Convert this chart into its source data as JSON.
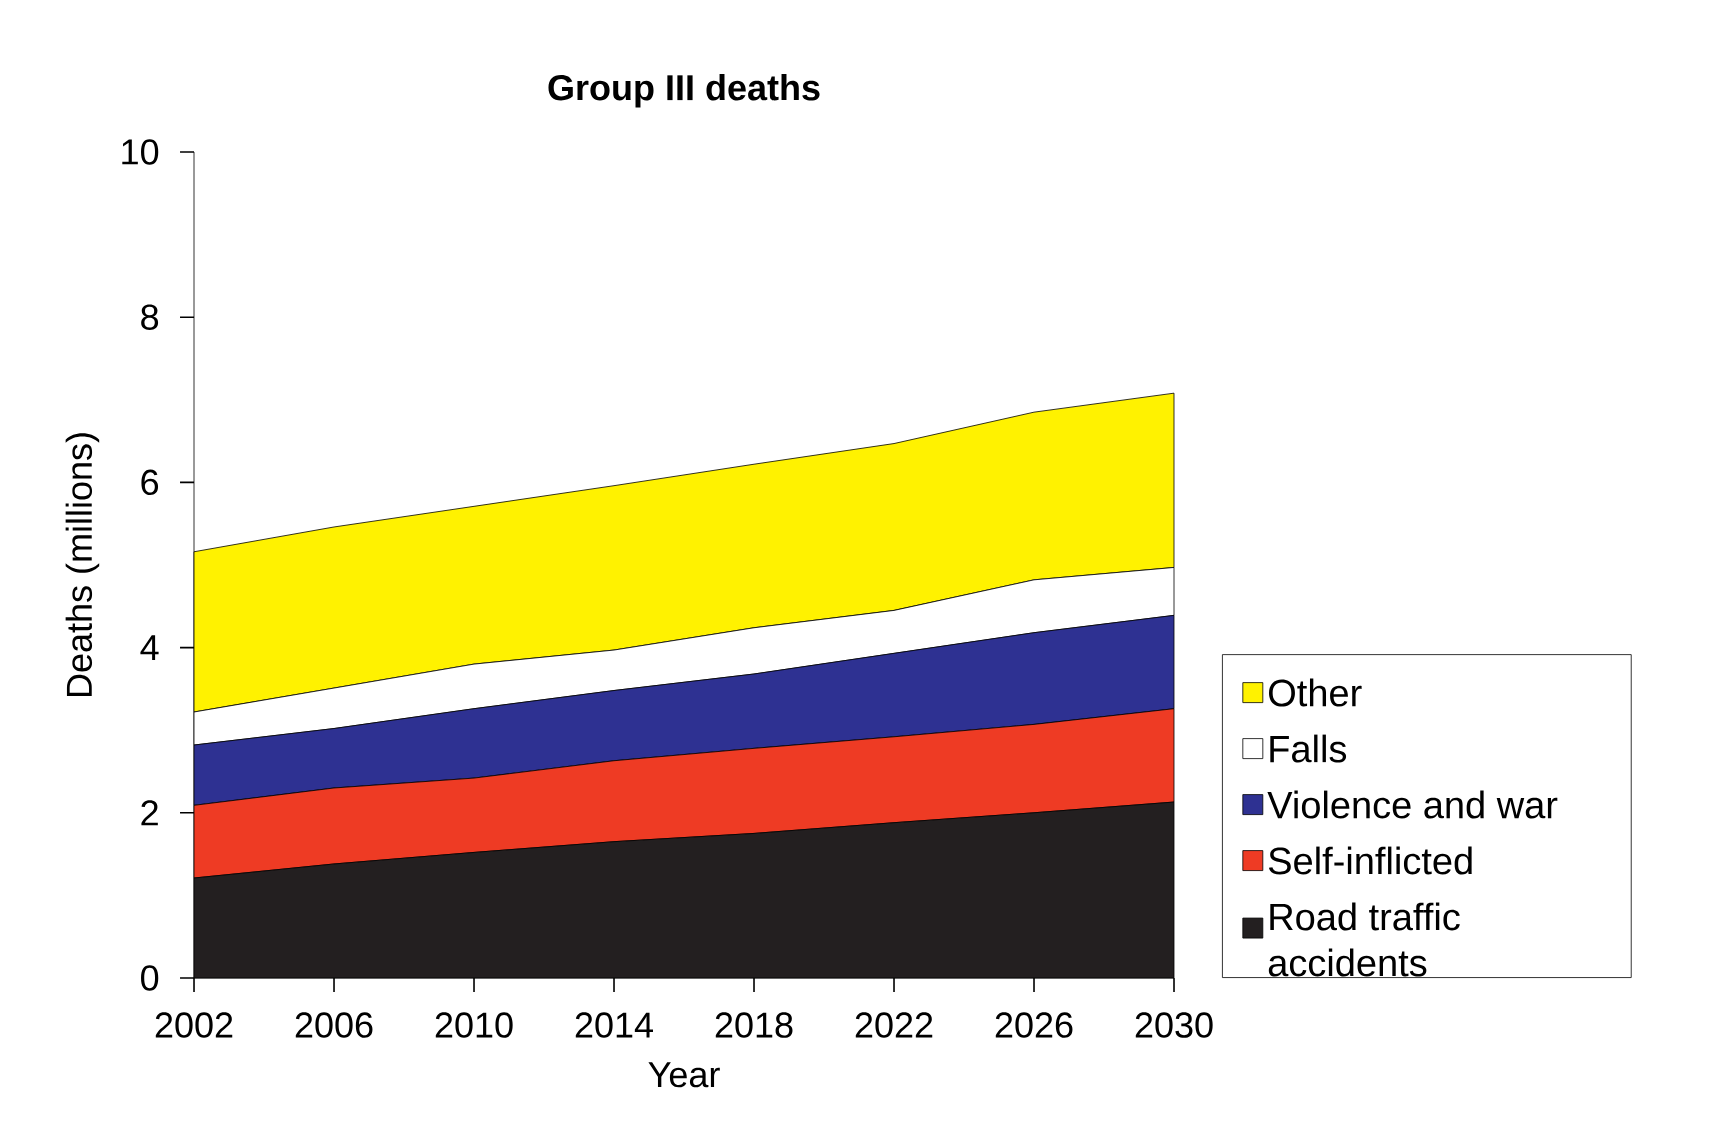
{
  "chart_data": {
    "type": "area",
    "stacked": true,
    "title": "Group III deaths",
    "xlabel": "Year",
    "ylabel": "Deaths (millions)",
    "x": [
      2002,
      2006,
      2010,
      2014,
      2018,
      2022,
      2026,
      2030
    ],
    "xlim": [
      2002,
      2030
    ],
    "xticks": [
      2002,
      2006,
      2010,
      2014,
      2018,
      2022,
      2026,
      2030
    ],
    "ylim": [
      0,
      10
    ],
    "yticks": [
      0,
      2,
      4,
      6,
      8,
      10
    ],
    "grid": false,
    "legend": "right",
    "series": [
      {
        "name": "Road traffic accidents",
        "color": "#231f20",
        "values": [
          1.21,
          1.38,
          1.52,
          1.65,
          1.75,
          1.88,
          2.0,
          2.13
        ]
      },
      {
        "name": "Self-inflicted",
        "color": "#ee3b24",
        "values": [
          0.88,
          0.92,
          0.9,
          0.98,
          1.03,
          1.04,
          1.07,
          1.13
        ]
      },
      {
        "name": "Violence and war",
        "color": "#2e3192",
        "values": [
          0.73,
          0.72,
          0.84,
          0.85,
          0.9,
          1.01,
          1.11,
          1.13
        ]
      },
      {
        "name": "Falls",
        "color": "#ffffff",
        "values": [
          0.4,
          0.49,
          0.54,
          0.49,
          0.56,
          0.52,
          0.64,
          0.58
        ]
      },
      {
        "name": "Other",
        "color": "#fff200",
        "values": [
          1.94,
          1.95,
          1.91,
          1.99,
          1.98,
          2.02,
          2.03,
          2.11
        ]
      }
    ]
  }
}
